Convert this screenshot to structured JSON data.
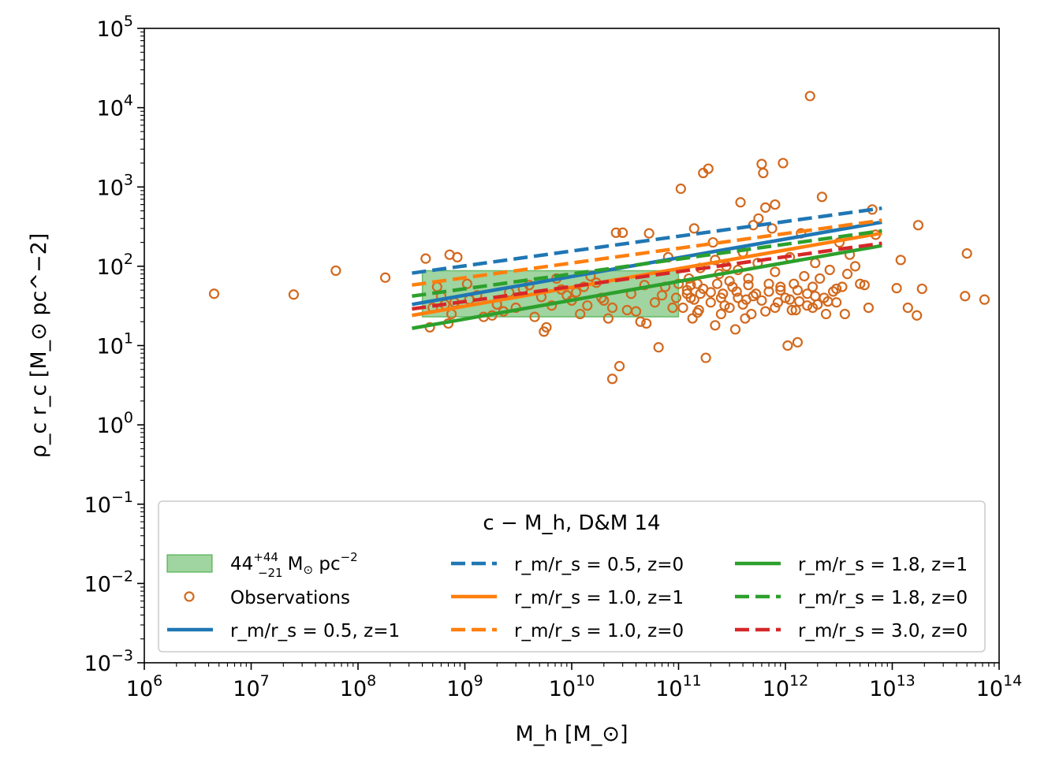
{
  "chart_data": {
    "type": "scatter",
    "title": "",
    "xlabel": "M_h [M_⊙]",
    "ylabel": "ρ_c r_c [M_⊙ pc^−2]",
    "xscale": "log",
    "yscale": "log",
    "xlim": [
      1000000.0,
      100000000000000.0
    ],
    "ylim": [
      0.001,
      100000.0
    ],
    "x_ticks": [
      {
        "base": "10",
        "exp": "6"
      },
      {
        "base": "10",
        "exp": "7"
      },
      {
        "base": "10",
        "exp": "8"
      },
      {
        "base": "10",
        "exp": "9"
      },
      {
        "base": "10",
        "exp": "10"
      },
      {
        "base": "10",
        "exp": "11"
      },
      {
        "base": "10",
        "exp": "12"
      },
      {
        "base": "10",
        "exp": "13"
      },
      {
        "base": "10",
        "exp": "14"
      }
    ],
    "y_ticks": [
      {
        "base": "10",
        "exp": "−3"
      },
      {
        "base": "10",
        "exp": "−2"
      },
      {
        "base": "10",
        "exp": "−1"
      },
      {
        "base": "10",
        "exp": "0"
      },
      {
        "base": "10",
        "exp": "1"
      },
      {
        "base": "10",
        "exp": "2"
      },
      {
        "base": "10",
        "exp": "3"
      },
      {
        "base": "10",
        "exp": "4"
      },
      {
        "base": "10",
        "exp": "5"
      }
    ],
    "legend": {
      "title": "c − M_h, D&M 14",
      "placement": "lower-center",
      "band_label": "44 (+44 / −21) M⊙ pc⁻² band",
      "band_parts": {
        "main": "44",
        "sup": "+44",
        "sub": "−21",
        "unit": "M",
        "unit_sub": "⊙",
        "unit2": " pc",
        "unit2_sup": "−2"
      }
    },
    "band": {
      "name": "44 +44/−21 M⊙ pc⁻²",
      "x_range": [
        400000000.0,
        100000000000.0
      ],
      "y_center": 44,
      "y_range": [
        23,
        88
      ],
      "color": "#2ca02c"
    },
    "series": [
      {
        "name": "Observations",
        "kind": "scatter",
        "color": "#d2691e",
        "points": [
          [
            4500000.0,
            45
          ],
          [
            25000000.0,
            44
          ],
          [
            62000000.0,
            88
          ],
          [
            180000000.0,
            72
          ],
          [
            430000000.0,
            125
          ],
          [
            470000000.0,
            17
          ],
          [
            500000000.0,
            30
          ],
          [
            550000000.0,
            55
          ],
          [
            600000000.0,
            42
          ],
          [
            650000000.0,
            33
          ],
          [
            700000000.0,
            19
          ],
          [
            720000000.0,
            140
          ],
          [
            750000000.0,
            25
          ],
          [
            800000000.0,
            35
          ],
          [
            850000000.0,
            130
          ],
          [
            1050000000.0,
            60
          ],
          [
            1100000000.0,
            38
          ],
          [
            1300000000.0,
            43
          ],
          [
            1500000000.0,
            23
          ],
          [
            1800000000.0,
            24
          ],
          [
            2000000000.0,
            33
          ],
          [
            2300000000.0,
            27
          ],
          [
            2600000000.0,
            47
          ],
          [
            3000000000.0,
            30
          ],
          [
            3500000000.0,
            52
          ],
          [
            4000000000.0,
            58
          ],
          [
            4500000000.0,
            23
          ],
          [
            5200000000.0,
            41
          ],
          [
            5500000000.0,
            15
          ],
          [
            5800000000.0,
            17
          ],
          [
            6500000000.0,
            32
          ],
          [
            7200000000.0,
            70
          ],
          [
            8000000000.0,
            51
          ],
          [
            9000000000.0,
            43
          ],
          [
            10000000000.0,
            37
          ],
          [
            11000000000.0,
            47
          ],
          [
            12000000000.0,
            25
          ],
          [
            13000000000.0,
            55
          ],
          [
            14000000000.0,
            32
          ],
          [
            15000000000.0,
            75
          ],
          [
            17000000000.0,
            62
          ],
          [
            19000000000.0,
            40
          ],
          [
            20000000000.0,
            37
          ],
          [
            22000000000.0,
            22
          ],
          [
            24000000000.0,
            30
          ],
          [
            26000000000.0,
            265
          ],
          [
            28000000000.0,
            5.5
          ],
          [
            30000000000.0,
            265
          ],
          [
            33000000000.0,
            28
          ],
          [
            36000000000.0,
            45
          ],
          [
            40000000000.0,
            27
          ],
          [
            44000000000.0,
            20
          ],
          [
            48000000000.0,
            58
          ],
          [
            50000000000.0,
            19
          ],
          [
            53000000000.0,
            260
          ],
          [
            60000000000.0,
            35
          ],
          [
            65000000000.0,
            9.5
          ],
          [
            70000000000.0,
            43
          ],
          [
            75000000000.0,
            55
          ],
          [
            80000000000.0,
            130
          ],
          [
            88000000000.0,
            30
          ],
          [
            100000000000.0,
            60
          ],
          [
            24000000000.0,
            3.8
          ],
          [
            105000000000.0,
            950
          ],
          [
            110000000000.0,
            30
          ],
          [
            120000000000.0,
            50
          ],
          [
            125000000000.0,
            70
          ],
          [
            130000000000.0,
            40
          ],
          [
            135000000000.0,
            22
          ],
          [
            140000000000.0,
            300
          ],
          [
            150000000000.0,
            60
          ],
          [
            155000000000.0,
            28
          ],
          [
            160000000000.0,
            45
          ],
          [
            170000000000.0,
            1500
          ],
          [
            180000000000.0,
            7
          ],
          [
            190000000000.0,
            1700
          ],
          [
            200000000000.0,
            35
          ],
          [
            210000000000.0,
            200
          ],
          [
            220000000000.0,
            18
          ],
          [
            230000000000.0,
            60
          ],
          [
            240000000000.0,
            80
          ],
          [
            250000000000.0,
            25
          ],
          [
            260000000000.0,
            45
          ],
          [
            280000000000.0,
            100
          ],
          [
            300000000000.0,
            30
          ],
          [
            320000000000.0,
            55
          ],
          [
            340000000000.0,
            16
          ],
          [
            360000000000.0,
            40
          ],
          [
            380000000000.0,
            640
          ],
          [
            400000000000.0,
            150
          ],
          [
            430000000000.0,
            38
          ],
          [
            450000000000.0,
            70
          ],
          [
            480000000000.0,
            25
          ],
          [
            500000000000.0,
            330
          ],
          [
            530000000000.0,
            45
          ],
          [
            560000000000.0,
            400
          ],
          [
            600000000000.0,
            1950
          ],
          [
            620000000000.0,
            1500
          ],
          [
            650000000000.0,
            550
          ],
          [
            700000000000.0,
            60
          ],
          [
            750000000000.0,
            300
          ],
          [
            800000000000.0,
            600
          ],
          [
            850000000000.0,
            35
          ],
          [
            900000000000.0,
            50
          ],
          [
            950000000000.0,
            2000
          ],
          [
            1000000000000.0,
            40
          ],
          [
            1050000000000.0,
            10
          ],
          [
            1100000000000.0,
            130
          ],
          [
            1150000000000.0,
            28
          ],
          [
            1200000000000.0,
            60
          ],
          [
            1300000000000.0,
            11
          ],
          [
            1350000000000.0,
            36
          ],
          [
            1400000000000.0,
            260
          ],
          [
            1500000000000.0,
            75
          ],
          [
            1600000000000.0,
            45
          ],
          [
            1700000000000.0,
            14000
          ],
          [
            1800000000000.0,
            55
          ],
          [
            1900000000000.0,
            110
          ],
          [
            2000000000000.0,
            33
          ],
          [
            2100000000000.0,
            70
          ],
          [
            2200000000000.0,
            750
          ],
          [
            2300000000000.0,
            40
          ],
          [
            2400000000000.0,
            25
          ],
          [
            2600000000000.0,
            90
          ],
          [
            2800000000000.0,
            48
          ],
          [
            3000000000000.0,
            35
          ],
          [
            3200000000000.0,
            200
          ],
          [
            3400000000000.0,
            55
          ],
          [
            3600000000000.0,
            25
          ],
          [
            3800000000000.0,
            80
          ],
          [
            4000000000000.0,
            140
          ],
          [
            4500000000000.0,
            100
          ],
          [
            5000000000000.0,
            60
          ],
          [
            5500000000000.0,
            58
          ],
          [
            6000000000000.0,
            30
          ],
          [
            6500000000000.0,
            520
          ],
          [
            7000000000000.0,
            250
          ],
          [
            11000000000000.0,
            53
          ],
          [
            12000000000000.0,
            120
          ],
          [
            14000000000000.0,
            30
          ],
          [
            17000000000000.0,
            24
          ],
          [
            17500000000000.0,
            330
          ],
          [
            19000000000000.0,
            52
          ],
          [
            50000000000000.0,
            145
          ],
          [
            48000000000000.0,
            42
          ],
          [
            73000000000000.0,
            38
          ],
          [
            120000000000.0,
            45
          ],
          [
            140000000000.0,
            38
          ],
          [
            170000000000.0,
            52
          ],
          [
            200000000000.0,
            47
          ],
          [
            250000000000.0,
            40
          ],
          [
            300000000000.0,
            65
          ],
          [
            350000000000.0,
            48
          ],
          [
            400000000000.0,
            33
          ],
          [
            450000000000.0,
            58
          ],
          [
            500000000000.0,
            42
          ],
          [
            600000000000.0,
            37
          ],
          [
            700000000000.0,
            48
          ],
          [
            800000000000.0,
            30
          ],
          [
            900000000000.0,
            55
          ],
          [
            1100000000000.0,
            38
          ],
          [
            1300000000000.0,
            50
          ],
          [
            1600000000000.0,
            32
          ],
          [
            1900000000000.0,
            42
          ],
          [
            2500000000000.0,
            36
          ],
          [
            3000000000000.0,
            52
          ],
          [
            160000000000.0,
            95
          ],
          [
            220000000000.0,
            120
          ],
          [
            360000000000.0,
            90
          ],
          [
            550000000000.0,
            110
          ],
          [
            800000000000.0,
            85
          ],
          [
            150000000000.0,
            26
          ],
          [
            270000000000.0,
            32
          ],
          [
            420000000000.0,
            22
          ],
          [
            650000000000.0,
            27
          ],
          [
            1250000000000.0,
            28
          ],
          [
            1800000000000.0,
            30
          ],
          [
            95000000000.0,
            40
          ],
          [
            130000000000.0,
            58
          ]
        ]
      },
      {
        "name": "r_m/r_s = 0.5, z=1",
        "kind": "line",
        "style": "solid",
        "color": "#1f77b4",
        "x": [
          320000000.0,
          8000000000000.0
        ],
        "y": [
          33,
          360
        ]
      },
      {
        "name": "r_m/r_s = 0.5, z=0",
        "kind": "line",
        "style": "dashed",
        "color": "#1f77b4",
        "x": [
          320000000.0,
          8000000000000.0
        ],
        "y": [
          82,
          540
        ]
      },
      {
        "name": "r_m/r_s = 1.0, z=1",
        "kind": "line",
        "style": "solid",
        "color": "#ff7f0e",
        "x": [
          320000000.0,
          8000000000000.0
        ],
        "y": [
          24,
          262
        ]
      },
      {
        "name": "r_m/r_s = 1.0, z=0",
        "kind": "line",
        "style": "dashed",
        "color": "#ff7f0e",
        "x": [
          320000000.0,
          8000000000000.0
        ],
        "y": [
          58,
          380
        ]
      },
      {
        "name": "r_m/r_s = 1.8, z=1",
        "kind": "line",
        "style": "solid",
        "color": "#2ca02c",
        "x": [
          320000000.0,
          8000000000000.0
        ],
        "y": [
          16.5,
          182
        ]
      },
      {
        "name": "r_m/r_s = 1.8, z=0",
        "kind": "line",
        "style": "dashed",
        "color": "#2ca02c",
        "x": [
          320000000.0,
          8000000000000.0
        ],
        "y": [
          42,
          280
        ]
      },
      {
        "name": "r_m/r_s = 3.0, z=0",
        "kind": "line",
        "style": "dashed",
        "color": "#d62728",
        "x": [
          320000000.0,
          8000000000000.0
        ],
        "y": [
          29,
          195
        ]
      }
    ]
  }
}
